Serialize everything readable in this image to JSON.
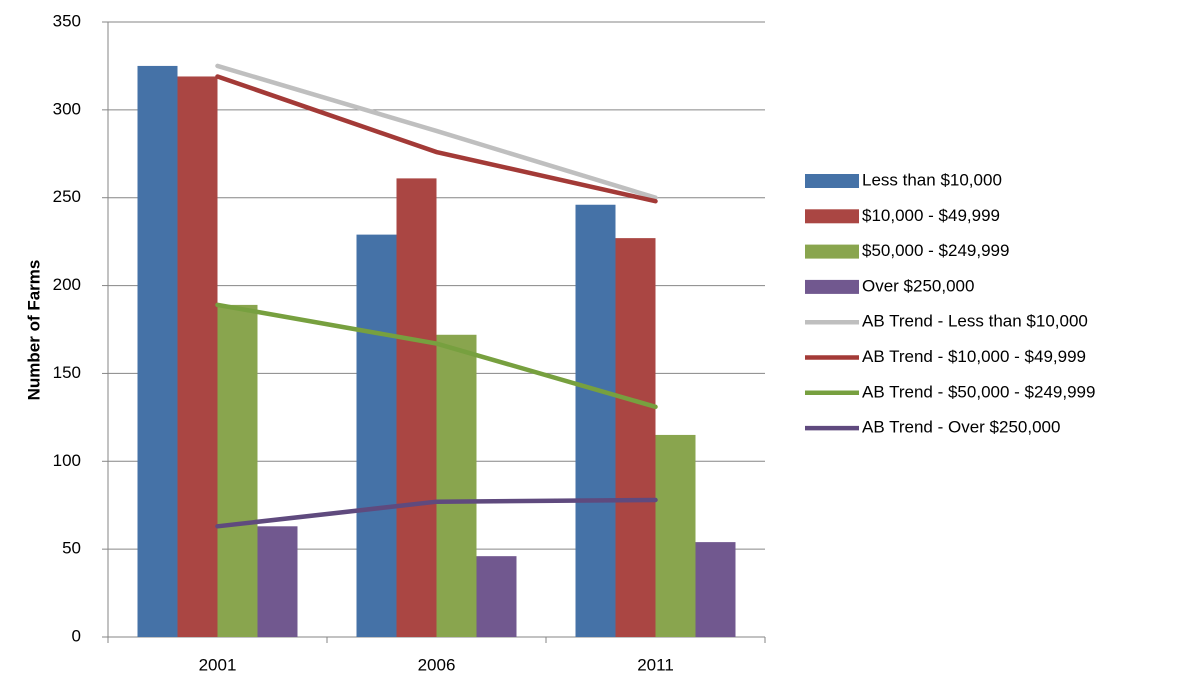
{
  "chart_data": {
    "type": "bar-line",
    "y_label": "Number of Farms",
    "categories": [
      "2001",
      "2006",
      "2011"
    ],
    "series": [
      {
        "name": "Less than $10,000",
        "kind": "bar",
        "color": "#4572a7",
        "values": [
          325,
          229,
          246
        ]
      },
      {
        "name": "$10,000 - $49,999",
        "kind": "bar",
        "color": "#aa4643",
        "values": [
          319,
          261,
          227
        ]
      },
      {
        "name": "$50,000 - $249,999",
        "kind": "bar",
        "color": "#89a54e",
        "values": [
          189,
          172,
          115
        ]
      },
      {
        "name": "Over $250,000",
        "kind": "bar",
        "color": "#71588f",
        "values": [
          63,
          46,
          54
        ]
      },
      {
        "name": "AB Trend - Less than $10,000",
        "kind": "line",
        "color": "#bfbfbf",
        "values": [
          325,
          288,
          250
        ]
      },
      {
        "name": "AB Trend - $10,000 - $49,999",
        "kind": "line",
        "color": "#a33a37",
        "values": [
          319,
          276,
          248
        ]
      },
      {
        "name": "AB Trend - $50,000 - $249,999",
        "kind": "line",
        "color": "#77a03f",
        "values": [
          189,
          167,
          131
        ]
      },
      {
        "name": "AB Trend - Over $250,000",
        "kind": "line",
        "color": "#5f4a7e",
        "values": [
          63,
          77,
          78
        ]
      }
    ],
    "ylim": [
      0,
      350
    ],
    "yticks": [
      0,
      50,
      100,
      150,
      200,
      250,
      300,
      350
    ],
    "grid": true,
    "legend": "right"
  }
}
